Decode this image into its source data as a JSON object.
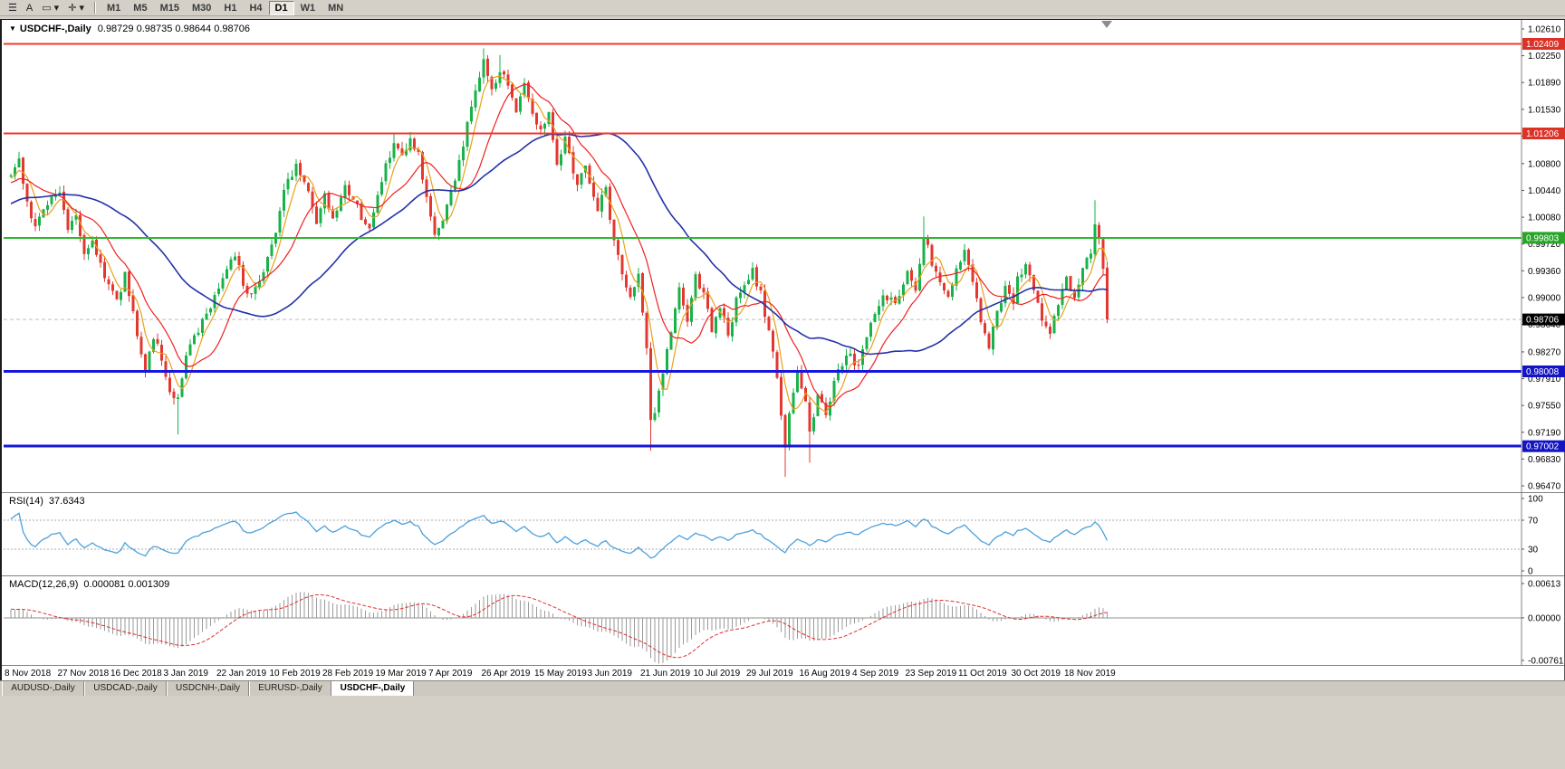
{
  "window": {
    "bg_color": "#d4d0c8"
  },
  "toolbar": {
    "tools": [
      {
        "name": "charts-menu-icon",
        "glyph": "☰"
      },
      {
        "name": "text-annotation-icon",
        "glyph": "A"
      },
      {
        "name": "shapes-tool-icon",
        "glyph": "▭ ▾"
      },
      {
        "name": "crosshair-tool-icon",
        "glyph": "✛ ▾"
      }
    ],
    "timeframes": [
      {
        "label": "M1",
        "active": false
      },
      {
        "label": "M5",
        "active": false
      },
      {
        "label": "M15",
        "active": false
      },
      {
        "label": "M30",
        "active": false
      },
      {
        "label": "H1",
        "active": false
      },
      {
        "label": "H4",
        "active": false
      },
      {
        "label": "D1",
        "active": true
      },
      {
        "label": "W1",
        "active": false
      },
      {
        "label": "MN",
        "active": false
      }
    ]
  },
  "chart": {
    "dropdown_glyph": "▼",
    "symbol_label": "USDCHF-,Daily",
    "ohlc_text": "0.98729 0.98735 0.98644 0.98706",
    "price_axis_ticks": [
      "1.02610",
      "1.02250",
      "1.01890",
      "1.01530",
      "1.01170",
      "1.00800",
      "1.00440",
      "1.00080",
      "0.99720",
      "0.99360",
      "0.99000",
      "0.98640",
      "0.98270",
      "0.97910",
      "0.97550",
      "0.97190",
      "0.96830",
      "0.96470"
    ],
    "hlines": [
      {
        "value": 1.02409,
        "label": "1.02409",
        "color": "#f2392c",
        "badge": "#dd3226",
        "width": 2
      },
      {
        "value": 1.01206,
        "label": "1.01206",
        "color": "#f2392c",
        "badge": "#dd3226",
        "width": 2
      },
      {
        "value": 0.99803,
        "label": "0.99803",
        "color": "#2eb82e",
        "badge": "#27a527",
        "width": 2
      },
      {
        "value": 0.98008,
        "label": "0.98008",
        "color": "#1616dc",
        "badge": "#1414c4",
        "width": 3
      },
      {
        "value": 0.97002,
        "label": "0.97002",
        "color": "#1616dc",
        "badge": "#1414c4",
        "width": 3
      }
    ],
    "current_price": {
      "value": 0.98706,
      "label": "0.98706",
      "badge": "#000000",
      "line_color": "#bdbdbd"
    },
    "dates": [
      "8 Nov 2018",
      "27 Nov 2018",
      "16 Dec 2018",
      "3 Jan 2019",
      "22 Jan 2019",
      "10 Feb 2019",
      "28 Feb 2019",
      "19 Mar 2019",
      "7 Apr 2019",
      "26 Apr 2019",
      "15 May 2019",
      "3 Jun 2019",
      "21 Jun 2019",
      "10 Jul 2019",
      "29 Jul 2019",
      "16 Aug 2019",
      "4 Sep 2019",
      "23 Sep 2019",
      "11 Oct 2019",
      "30 Oct 2019",
      "18 Nov 2019"
    ]
  },
  "rsi_panel": {
    "label": "RSI(14)",
    "value": "37.6343",
    "axis": [
      "100",
      "70",
      "30",
      "0"
    ],
    "levels": [
      70,
      30
    ],
    "line_color": "#4ba1dc"
  },
  "macd_panel": {
    "label": "MACD(12,26,9)",
    "values": "0.000081 0.001309",
    "axis": [
      "0.00613",
      "0.00000",
      "-0.00761"
    ],
    "histogram_color": "#9a9a9a",
    "signal_color": "#e03030"
  },
  "tabs": [
    {
      "label": "AUDUSD-,Daily",
      "active": false
    },
    {
      "label": "USDCAD-,Daily",
      "active": false
    },
    {
      "label": "USDCNH-,Daily",
      "active": false
    },
    {
      "label": "EURUSD-,Daily",
      "active": false
    },
    {
      "label": "USDCHF-,Daily",
      "active": true
    }
  ],
  "chart_data": {
    "type": "candlestick",
    "symbol": "USDCHF",
    "timeframe": "Daily",
    "candle_count": 270,
    "warmup_start": -60,
    "seed": 42,
    "noise": 0.0013,
    "wick": 0.0009,
    "last_close": 0.98706,
    "colors": {
      "up": "#18b24a",
      "down": "#e3382f"
    },
    "price_range": {
      "top_tick": 1.0261,
      "bottom_tick": 0.9647
    },
    "key_levels": [
      1.02409,
      1.01206,
      0.99803,
      0.98008,
      0.97002
    ],
    "moving_averages": [
      {
        "period": 5,
        "color": "#e8a11c"
      },
      {
        "period": 13,
        "color": "#f02020"
      },
      {
        "period": 40,
        "color": "#2431a8"
      }
    ],
    "rsi_period": 14,
    "macd_params": [
      12,
      26,
      9
    ],
    "price_anchors": [
      [
        -60,
        0.9905
      ],
      [
        -45,
        0.9955
      ],
      [
        -30,
        1.0005
      ],
      [
        -15,
        1.004
      ],
      [
        -5,
        1.0055
      ],
      [
        0,
        1.0065
      ],
      [
        2,
        1.0085
      ],
      [
        4,
        1.003
      ],
      [
        6,
        0.9995
      ],
      [
        9,
        1.003
      ],
      [
        12,
        1.0045
      ],
      [
        14,
        0.999
      ],
      [
        16,
        1.001
      ],
      [
        18,
        0.996
      ],
      [
        20,
        0.9975
      ],
      [
        23,
        0.993
      ],
      [
        26,
        0.9895
      ],
      [
        28,
        0.993
      ],
      [
        30,
        0.988
      ],
      [
        33,
        0.98
      ],
      [
        35,
        0.985
      ],
      [
        38,
        0.9795
      ],
      [
        40,
        0.976
      ],
      [
        41,
        0.977
      ],
      [
        43,
        0.982
      ],
      [
        46,
        0.9855
      ],
      [
        49,
        0.989
      ],
      [
        52,
        0.993
      ],
      [
        55,
        0.9955
      ],
      [
        58,
        0.9905
      ],
      [
        61,
        0.9925
      ],
      [
        64,
        0.997
      ],
      [
        67,
        1.004
      ],
      [
        70,
        1.008
      ],
      [
        73,
        1.004
      ],
      [
        75,
        1.0
      ],
      [
        77,
        1.0035
      ],
      [
        79,
        1.0
      ],
      [
        82,
        1.0045
      ],
      [
        85,
        1.002
      ],
      [
        88,
        0.999
      ],
      [
        91,
        1.006
      ],
      [
        94,
        1.0105
      ],
      [
        96,
        1.0085
      ],
      [
        98,
        1.0108
      ],
      [
        100,
        1.009
      ],
      [
        102,
        1.003
      ],
      [
        104,
        0.9985
      ],
      [
        106,
        1.0005
      ],
      [
        109,
        1.006
      ],
      [
        112,
        1.013
      ],
      [
        114,
        1.018
      ],
      [
        116,
        1.022
      ],
      [
        118,
        1.0175
      ],
      [
        120,
        1.0205
      ],
      [
        122,
        1.0185
      ],
      [
        124,
        1.0155
      ],
      [
        126,
        1.019
      ],
      [
        128,
        1.015
      ],
      [
        130,
        1.0125
      ],
      [
        132,
        1.015
      ],
      [
        134,
        1.0085
      ],
      [
        136,
        1.011
      ],
      [
        139,
        1.0055
      ],
      [
        141,
        1.0075
      ],
      [
        144,
        1.002
      ],
      [
        146,
        1.0045
      ],
      [
        148,
        0.9975
      ],
      [
        150,
        0.9935
      ],
      [
        152,
        0.99
      ],
      [
        154,
        0.993
      ],
      [
        156,
        0.983
      ],
      [
        157,
        0.973
      ],
      [
        158,
        0.975
      ],
      [
        160,
        0.98
      ],
      [
        162,
        0.9855
      ],
      [
        164,
        0.991
      ],
      [
        166,
        0.987
      ],
      [
        168,
        0.9925
      ],
      [
        170,
        0.9905
      ],
      [
        172,
        0.9855
      ],
      [
        174,
        0.989
      ],
      [
        176,
        0.9845
      ],
      [
        178,
        0.9895
      ],
      [
        180,
        0.9915
      ],
      [
        182,
        0.9935
      ],
      [
        184,
        0.9905
      ],
      [
        186,
        0.9855
      ],
      [
        188,
        0.979
      ],
      [
        190,
        0.97
      ],
      [
        191,
        0.9745
      ],
      [
        193,
        0.98
      ],
      [
        195,
        0.976
      ],
      [
        196,
        0.972
      ],
      [
        198,
        0.9765
      ],
      [
        200,
        0.9745
      ],
      [
        202,
        0.9785
      ],
      [
        205,
        0.9825
      ],
      [
        208,
        0.9805
      ],
      [
        211,
        0.987
      ],
      [
        214,
        0.9905
      ],
      [
        217,
        0.989
      ],
      [
        220,
        0.993
      ],
      [
        222,
        0.9915
      ],
      [
        224,
        0.9985
      ],
      [
        226,
        0.9945
      ],
      [
        228,
        0.992
      ],
      [
        230,
        0.9895
      ],
      [
        232,
        0.994
      ],
      [
        234,
        0.9965
      ],
      [
        236,
        0.9925
      ],
      [
        238,
        0.987
      ],
      [
        240,
        0.9835
      ],
      [
        242,
        0.988
      ],
      [
        244,
        0.9915
      ],
      [
        246,
        0.9895
      ],
      [
        247,
        0.9925
      ],
      [
        249,
        0.9945
      ],
      [
        251,
        0.9905
      ],
      [
        253,
        0.987
      ],
      [
        255,
        0.985
      ],
      [
        257,
        0.9895
      ],
      [
        259,
        0.9925
      ],
      [
        261,
        0.9905
      ],
      [
        263,
        0.994
      ],
      [
        265,
        0.9965
      ],
      [
        266,
        1.0
      ],
      [
        267,
        0.9985
      ],
      [
        268,
        0.994
      ],
      [
        269,
        0.98706
      ]
    ],
    "spikes": [
      {
        "i": 2,
        "high": 1.0096
      },
      {
        "i": 41,
        "low": 0.9716
      },
      {
        "i": 94,
        "high": 1.0121
      },
      {
        "i": 116,
        "high": 1.0235
      },
      {
        "i": 120,
        "high": 1.0226
      },
      {
        "i": 157,
        "low": 0.9694
      },
      {
        "i": 190,
        "low": 0.9659
      },
      {
        "i": 196,
        "low": 0.9678
      },
      {
        "i": 224,
        "high": 1.0009
      },
      {
        "i": 266,
        "high": 1.0031
      }
    ]
  }
}
